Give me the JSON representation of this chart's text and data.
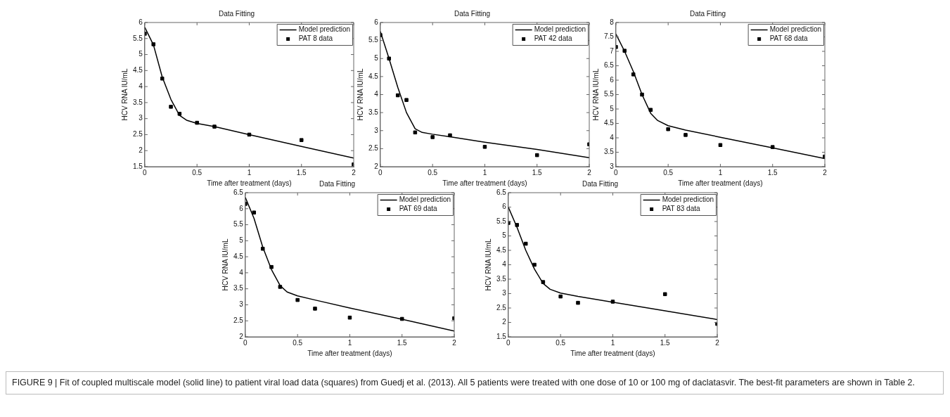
{
  "chart_data": [
    {
      "type": "line",
      "title": "Data Fitting",
      "xlabel": "Time after treatment (days)",
      "ylabel": "HCV RNA IU/mL",
      "xlim": [
        0,
        2
      ],
      "xticks": [
        0,
        0.5,
        1,
        1.5,
        2
      ],
      "ylim": [
        1.5,
        6
      ],
      "yticks": [
        1.5,
        2,
        2.5,
        3,
        3.5,
        4,
        4.5,
        5,
        5.5,
        6
      ],
      "legend": "top right",
      "line_style": "solid",
      "annotations": [
        "FIGURE 9 | Fit of coupled multiscale model (solid line) to patient viral load data (squares) from Guedj et al. (2013). All 5 patients were treated with one dose of 10 or 100 mg of daclatasvir. The best-fit parameters are shown in Table 2."
      ],
      "series": [
        {
          "name": "Model prediction",
          "type": "line",
          "color": "#000000",
          "marker": "none",
          "x": [
            0,
            0.083,
            0.167,
            0.25,
            0.333,
            0.4,
            0.5,
            0.667,
            1,
            1.5,
            2
          ],
          "values": [
            5.85,
            5.3,
            4.3,
            3.6,
            3.1,
            2.95,
            2.85,
            2.75,
            2.5,
            2.13,
            1.77
          ]
        },
        {
          "name": "PAT 8 data",
          "type": "scatter",
          "color": "#000000",
          "marker": "square",
          "x": [
            0,
            0.083,
            0.167,
            0.25,
            0.333,
            0.5,
            0.667,
            1,
            1.5,
            2
          ],
          "values": [
            5.65,
            5.32,
            4.25,
            3.37,
            3.15,
            2.87,
            2.75,
            2.5,
            2.33,
            1.57
          ]
        }
      ]
    },
    {
      "type": "line",
      "title": "Data Fitting",
      "xlabel": "Time after treatment (days)",
      "ylabel": "HCV RNA IU/mL",
      "xlim": [
        0,
        2
      ],
      "xticks": [
        0,
        0.5,
        1,
        1.5,
        2
      ],
      "ylim": [
        2,
        6
      ],
      "yticks": [
        2,
        2.5,
        3,
        3.5,
        4,
        4.5,
        5,
        5.5,
        6
      ],
      "legend": "top right",
      "line_style": "solid",
      "series": [
        {
          "name": "Model prediction",
          "type": "line",
          "color": "#000000",
          "marker": "none",
          "x": [
            0,
            0.083,
            0.167,
            0.25,
            0.333,
            0.4,
            0.5,
            0.667,
            1,
            1.5,
            2
          ],
          "values": [
            5.75,
            5.0,
            4.2,
            3.5,
            3.05,
            2.95,
            2.9,
            2.83,
            2.68,
            2.48,
            2.25
          ]
        },
        {
          "name": "PAT 42 data",
          "type": "scatter",
          "color": "#000000",
          "marker": "square",
          "x": [
            0,
            0.083,
            0.167,
            0.25,
            0.333,
            0.5,
            0.667,
            1,
            1.5,
            2
          ],
          "values": [
            5.65,
            5.0,
            3.98,
            3.85,
            2.95,
            2.82,
            2.87,
            2.55,
            2.32,
            2.62
          ]
        }
      ]
    },
    {
      "type": "line",
      "title": "Data Fitting",
      "xlabel": "Time after treatment (days)",
      "ylabel": "HCV RNA IU/mL",
      "xlim": [
        0,
        2
      ],
      "xticks": [
        0,
        0.5,
        1,
        1.5,
        2
      ],
      "ylim": [
        3,
        8
      ],
      "yticks": [
        3,
        3.5,
        4,
        4.5,
        5,
        5.5,
        6,
        6.5,
        7,
        7.5,
        8
      ],
      "legend": "top right",
      "line_style": "solid",
      "series": [
        {
          "name": "Model prediction",
          "type": "line",
          "color": "#000000",
          "marker": "none",
          "x": [
            0,
            0.083,
            0.167,
            0.25,
            0.333,
            0.4,
            0.5,
            0.667,
            1,
            1.5,
            2
          ],
          "values": [
            7.6,
            7.0,
            6.3,
            5.5,
            4.85,
            4.6,
            4.42,
            4.27,
            4.02,
            3.65,
            3.28
          ]
        },
        {
          "name": "PAT 68 data",
          "type": "scatter",
          "color": "#000000",
          "marker": "square",
          "x": [
            0,
            0.083,
            0.167,
            0.25,
            0.333,
            0.5,
            0.667,
            1,
            1.5,
            2
          ],
          "values": [
            7.15,
            7.02,
            6.2,
            5.5,
            4.97,
            4.3,
            4.1,
            3.75,
            3.68,
            3.35
          ]
        }
      ]
    },
    {
      "type": "line",
      "title": "Data Fitting",
      "xlabel": "Time after treatment (days)",
      "ylabel": "HCV RNA IU/mL",
      "xlim": [
        0,
        2
      ],
      "xticks": [
        0,
        0.5,
        1,
        1.5,
        2
      ],
      "ylim": [
        2,
        6.5
      ],
      "yticks": [
        2,
        2.5,
        3,
        3.5,
        4,
        4.5,
        5,
        5.5,
        6,
        6.5
      ],
      "legend": "top right",
      "line_style": "solid",
      "series": [
        {
          "name": "Model prediction",
          "type": "line",
          "color": "#000000",
          "marker": "none",
          "x": [
            0,
            0.083,
            0.167,
            0.25,
            0.333,
            0.4,
            0.5,
            0.667,
            1,
            1.5,
            2
          ],
          "values": [
            6.35,
            5.7,
            4.8,
            4.1,
            3.6,
            3.4,
            3.28,
            3.15,
            2.9,
            2.55,
            2.18
          ]
        },
        {
          "name": "PAT 69 data",
          "type": "scatter",
          "color": "#000000",
          "marker": "square",
          "x": [
            0,
            0.083,
            0.167,
            0.25,
            0.333,
            0.5,
            0.667,
            1,
            1.5,
            2
          ],
          "values": [
            6.15,
            5.88,
            4.75,
            4.18,
            3.56,
            3.15,
            2.88,
            2.6,
            2.56,
            2.58
          ]
        }
      ]
    },
    {
      "type": "line",
      "title": "Data Fitting",
      "xlabel": "Time after treatment (days)",
      "ylabel": "HCV RNA IU/mL",
      "xlim": [
        0,
        2
      ],
      "xticks": [
        0,
        0.5,
        1,
        1.5,
        2
      ],
      "ylim": [
        1.5,
        6.5
      ],
      "yticks": [
        1.5,
        2,
        2.5,
        3,
        3.5,
        4,
        4.5,
        5,
        5.5,
        6,
        6.5
      ],
      "legend": "top right",
      "line_style": "solid",
      "series": [
        {
          "name": "Model prediction",
          "type": "line",
          "color": "#000000",
          "marker": "none",
          "x": [
            0,
            0.083,
            0.167,
            0.25,
            0.333,
            0.4,
            0.5,
            0.667,
            1,
            1.5,
            2
          ],
          "values": [
            6.0,
            5.3,
            4.5,
            3.85,
            3.35,
            3.15,
            3.02,
            2.9,
            2.7,
            2.4,
            2.1
          ]
        },
        {
          "name": "PAT 83 data",
          "type": "scatter",
          "color": "#000000",
          "marker": "square",
          "x": [
            0,
            0.083,
            0.167,
            0.25,
            0.333,
            0.5,
            0.667,
            1,
            1.5,
            2
          ],
          "values": [
            5.45,
            5.38,
            4.73,
            4.0,
            3.4,
            2.9,
            2.68,
            2.72,
            2.98,
            1.95
          ]
        }
      ]
    }
  ]
}
